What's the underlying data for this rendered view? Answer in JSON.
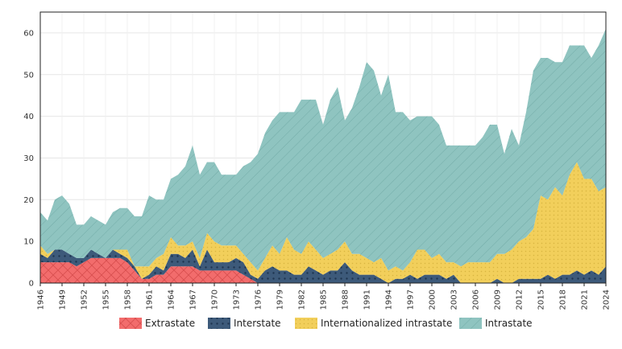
{
  "chart_data": {
    "type": "area",
    "stacked": true,
    "title": "",
    "xlabel": "",
    "ylabel": "",
    "ylim": [
      0,
      65
    ],
    "yticks": [
      0,
      10,
      20,
      30,
      40,
      50,
      60
    ],
    "xticks": [
      1946,
      1949,
      1952,
      1955,
      1958,
      1961,
      1964,
      1967,
      1970,
      1973,
      1976,
      1979,
      1982,
      1985,
      1988,
      1991,
      1994,
      1997,
      2000,
      2003,
      2006,
      2009,
      2012,
      2015,
      2018,
      2021,
      2024
    ],
    "grid": true,
    "legend_position": "bottom",
    "x": [
      1946,
      1947,
      1948,
      1949,
      1950,
      1951,
      1952,
      1953,
      1954,
      1955,
      1956,
      1957,
      1958,
      1959,
      1960,
      1961,
      1962,
      1963,
      1964,
      1965,
      1966,
      1967,
      1968,
      1969,
      1970,
      1971,
      1972,
      1973,
      1974,
      1975,
      1976,
      1977,
      1978,
      1979,
      1980,
      1981,
      1982,
      1983,
      1984,
      1985,
      1986,
      1987,
      1988,
      1989,
      1990,
      1991,
      1992,
      1993,
      1994,
      1995,
      1996,
      1997,
      1998,
      1999,
      2000,
      2001,
      2002,
      2003,
      2004,
      2005,
      2006,
      2007,
      2008,
      2009,
      2010,
      2011,
      2012,
      2013,
      2014,
      2015,
      2016,
      2017,
      2018,
      2019,
      2020,
      2021,
      2022,
      2023,
      2024
    ],
    "series": [
      {
        "name": "Extrastate",
        "color": "#f26c6c",
        "pattern": "crosshatch",
        "values": [
          5,
          5,
          5,
          5,
          5,
          4,
          5,
          6,
          6,
          6,
          6,
          6,
          5,
          3,
          1,
          1,
          2,
          2,
          4,
          4,
          4,
          4,
          3,
          3,
          3,
          3,
          3,
          3,
          2,
          1,
          0,
          0,
          0,
          0,
          0,
          0,
          0,
          0,
          0,
          0,
          0,
          0,
          0,
          0,
          0,
          0,
          0,
          0,
          0,
          0,
          0,
          0,
          0,
          0,
          0,
          0,
          0,
          0,
          0,
          0,
          0,
          0,
          0,
          0,
          0,
          0,
          0,
          0,
          0,
          0,
          0,
          0,
          0,
          0,
          0,
          0,
          0,
          0,
          0
        ]
      },
      {
        "name": "Interstate",
        "color": "#3d5a7a",
        "pattern": "dots",
        "values": [
          2,
          1,
          3,
          3,
          2,
          2,
          1,
          2,
          1,
          0,
          2,
          1,
          1,
          1,
          0,
          1,
          2,
          1,
          3,
          3,
          2,
          4,
          1,
          5,
          2,
          2,
          2,
          3,
          3,
          1,
          1,
          3,
          4,
          3,
          3,
          2,
          2,
          4,
          3,
          2,
          3,
          3,
          5,
          3,
          2,
          2,
          2,
          1,
          0,
          1,
          1,
          2,
          1,
          2,
          2,
          2,
          1,
          2,
          0,
          0,
          0,
          0,
          0,
          1,
          0,
          0,
          1,
          1,
          1,
          1,
          2,
          1,
          2,
          2,
          3,
          2,
          3,
          2,
          4
        ]
      },
      {
        "name": "Internationalized intrastate",
        "color": "#f2cf5b",
        "pattern": "dots",
        "values": [
          2,
          1,
          0,
          0,
          0,
          0,
          0,
          0,
          0,
          0,
          0,
          1,
          2,
          0,
          3,
          2,
          2,
          4,
          4,
          2,
          3,
          2,
          2,
          4,
          5,
          4,
          4,
          3,
          2,
          3,
          2,
          3,
          5,
          4,
          8,
          6,
          5,
          6,
          5,
          4,
          4,
          5,
          5,
          4,
          5,
          4,
          3,
          5,
          3,
          3,
          2,
          3,
          7,
          6,
          4,
          5,
          4,
          3,
          4,
          5,
          5,
          5,
          5,
          6,
          7,
          8,
          9,
          10,
          12,
          20,
          18,
          22,
          19,
          24,
          26,
          23,
          22,
          20,
          19
        ]
      },
      {
        "name": "Intrastate",
        "color": "#8fc4c0",
        "pattern": "diagonal",
        "values": [
          8,
          8,
          12,
          13,
          12,
          8,
          8,
          8,
          8,
          8,
          9,
          10,
          10,
          12,
          12,
          17,
          14,
          13,
          14,
          17,
          19,
          23,
          20,
          17,
          19,
          17,
          17,
          17,
          21,
          24,
          28,
          30,
          30,
          34,
          30,
          33,
          37,
          34,
          36,
          32,
          37,
          39,
          29,
          35,
          40,
          47,
          46,
          39,
          47,
          37,
          38,
          34,
          32,
          32,
          34,
          31,
          28,
          28,
          29,
          28,
          28,
          30,
          33,
          31,
          24,
          29,
          23,
          30,
          38,
          33,
          34,
          30,
          32,
          31,
          28,
          32,
          29,
          35,
          38
        ]
      }
    ]
  }
}
